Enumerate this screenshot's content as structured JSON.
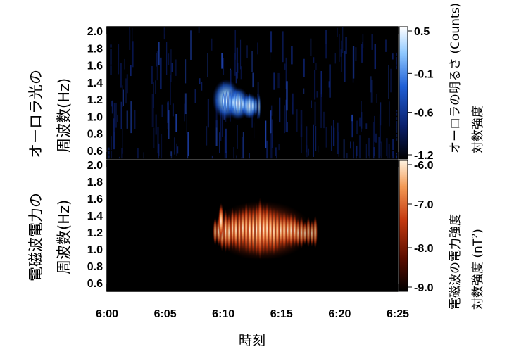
{
  "chart_data": [
    {
      "type": "heatmap",
      "panel": "top",
      "ylabel_line1": "オーロラ光の",
      "ylabel_line2": "周波数(Hz)",
      "x_range": [
        "6:00",
        "6:25"
      ],
      "ylim": [
        0.5,
        2.05
      ],
      "y_ticks": [
        "2.0",
        "1.8",
        "1.6",
        "1.4",
        "1.2",
        "1.0",
        "0.8",
        "0.6"
      ],
      "colorbar_label_line1": "オーロラの明るさ (Counts)",
      "colorbar_label_line2": "対数強度",
      "colorbar_ticks": [
        "0.5",
        "-0.1",
        "-0.6",
        "-1.2"
      ],
      "colorbar_range": [
        -1.2,
        0.5
      ],
      "colormap": [
        "#000000",
        "#0a1f6b",
        "#1f5fd6",
        "#8fc8ff",
        "#ffffff"
      ],
      "hotspots": [
        {
          "time": "6:10",
          "freq": 1.2,
          "intensity": 0.5
        },
        {
          "time": "6:11",
          "freq": 1.15,
          "intensity": 0.3
        },
        {
          "time": "6:12",
          "freq": 1.12,
          "intensity": 0.1
        }
      ]
    },
    {
      "type": "heatmap",
      "panel": "bottom",
      "ylabel_line1": "電磁波電力の",
      "ylabel_line2": "周波数(Hz)",
      "x_range": [
        "6:00",
        "6:25"
      ],
      "ylim": [
        0.5,
        2.05
      ],
      "y_ticks": [
        "2.0",
        "1.8",
        "1.6",
        "1.4",
        "1.2",
        "1.0",
        "0.8",
        "0.6"
      ],
      "colorbar_label_line1": "電磁波の電力強度",
      "colorbar_label_line2": "対数強度 (nT",
      "colorbar_label_sup": "2",
      "colorbar_label_close": ")",
      "colorbar_ticks": [
        "-6.0",
        "-7.0",
        "-8.0",
        "-9.0"
      ],
      "colorbar_range": [
        -9.0,
        -6.0
      ],
      "colormap": [
        "#000000",
        "#5a0d00",
        "#c53a10",
        "#f39a55",
        "#fff3e0"
      ],
      "event_time_range": [
        "6:09",
        "6:17"
      ],
      "event_freq_range": [
        0.9,
        1.6
      ]
    }
  ],
  "x_ticks": [
    "6:00",
    "6:05",
    "6:10",
    "6:15",
    "6:20",
    "6:25"
  ],
  "xlabel": "時刻"
}
